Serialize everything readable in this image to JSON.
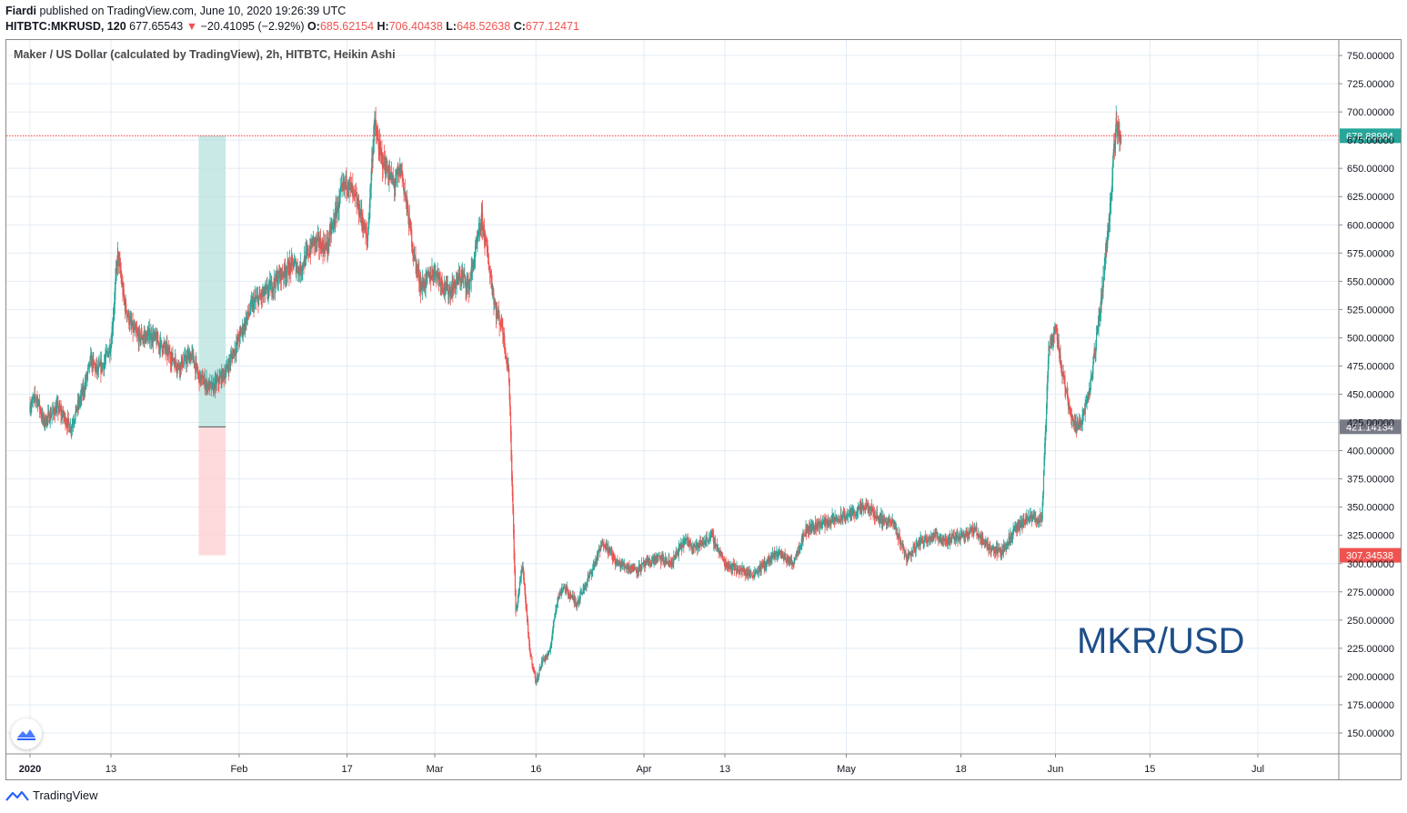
{
  "header": {
    "author": "Fiardi",
    "published": "published on TradingView.com, June 10, 2020 19:26:39 UTC",
    "symbol": "HITBTC:MKRUSD, 120",
    "last": "677.65543",
    "change_arrow": "▼",
    "change": "−20.41095 (−2.92%)",
    "o_label": "O:",
    "o_value": "685.62154",
    "h_label": "H:",
    "h_value": "706.40438",
    "l_label": "L:",
    "l_value": "648.52638",
    "c_label": "C:",
    "c_value": "677.12471"
  },
  "legend_title": "Maker / US Dollar (calculated by TradingView), 2h, HITBTC, Heikin Ashi",
  "watermark": "MKR/USD",
  "footer": {
    "brand": "TradingView",
    "logo_icon": "tradingview-logo-icon"
  },
  "colors": {
    "up": "#26a69a",
    "down": "#ef5350",
    "grid": "#e3ecf5",
    "price_line": "#e53935",
    "current_tag": "#26a69a",
    "sl_tag": "#ef5350",
    "entry_tag": "#787b86",
    "profit_zone": "#b2dfdb",
    "loss_zone": "#ffcdd2",
    "watermark": "#1d4e89"
  },
  "chart_data": {
    "type": "candlestick",
    "style": "Heikin Ashi",
    "timeframe": "2h",
    "exchange": "HITBTC",
    "x_ticks": [
      "2020",
      "13",
      "Feb",
      "17",
      "Mar",
      "16",
      "Apr",
      "13",
      "May",
      "18",
      "Jun",
      "15",
      "Jul"
    ],
    "x_tick_dates": [
      "2020-01-01",
      "2020-01-13",
      "2020-02-01",
      "2020-02-17",
      "2020-03-01",
      "2020-03-16",
      "2020-04-01",
      "2020-04-13",
      "2020-05-01",
      "2020-05-18",
      "2020-06-01",
      "2020-06-15",
      "2020-07-01"
    ],
    "y_ticks": [
      "750.00000",
      "725.00000",
      "700.00000",
      "675.00000",
      "650.00000",
      "625.00000",
      "600.00000",
      "575.00000",
      "550.00000",
      "525.00000",
      "500.00000",
      "475.00000",
      "450.00000",
      "425.00000",
      "400.00000",
      "375.00000",
      "350.00000",
      "325.00000",
      "300.00000",
      "275.00000",
      "250.00000",
      "225.00000",
      "200.00000",
      "175.00000",
      "150.00000"
    ],
    "y_tick_values": [
      750,
      725,
      700,
      675,
      650,
      625,
      600,
      575,
      550,
      525,
      500,
      475,
      450,
      425,
      400,
      375,
      350,
      325,
      300,
      275,
      250,
      225,
      200,
      175,
      150
    ],
    "ylim": [
      141,
      765
    ],
    "grid": true,
    "current_price": {
      "label": "678.88984",
      "value": 678.88984
    },
    "position": {
      "type": "long",
      "start": "2020-01-26",
      "end": "2020-01-30",
      "entry": 421.14134,
      "entry_label": "421.14134",
      "target": 679,
      "stop": 307.34538,
      "stop_label": "307.34538"
    },
    "price_path": [
      [
        "2020-01-01",
        440
      ],
      [
        "2020-01-02",
        448
      ],
      [
        "2020-01-03",
        425
      ],
      [
        "2020-01-05",
        438
      ],
      [
        "2020-01-06",
        430
      ],
      [
        "2020-01-07",
        420
      ],
      [
        "2020-01-08",
        438
      ],
      [
        "2020-01-09",
        455
      ],
      [
        "2020-01-10",
        480
      ],
      [
        "2020-01-11",
        470
      ],
      [
        "2020-01-12",
        478
      ],
      [
        "2020-01-13",
        495
      ],
      [
        "2020-01-14",
        575
      ],
      [
        "2020-01-15",
        530
      ],
      [
        "2020-01-16",
        510
      ],
      [
        "2020-01-17",
        500
      ],
      [
        "2020-01-19",
        502
      ],
      [
        "2020-01-21",
        490
      ],
      [
        "2020-01-23",
        475
      ],
      [
        "2020-01-25",
        485
      ],
      [
        "2020-01-26",
        465
      ],
      [
        "2020-01-28",
        455
      ],
      [
        "2020-01-30",
        470
      ],
      [
        "2020-02-01",
        500
      ],
      [
        "2020-02-03",
        530
      ],
      [
        "2020-02-05",
        540
      ],
      [
        "2020-02-07",
        555
      ],
      [
        "2020-02-09",
        565
      ],
      [
        "2020-02-10",
        560
      ],
      [
        "2020-02-12",
        585
      ],
      [
        "2020-02-14",
        580
      ],
      [
        "2020-02-16",
        625
      ],
      [
        "2020-02-17",
        640
      ],
      [
        "2020-02-18",
        625
      ],
      [
        "2020-02-19",
        610
      ],
      [
        "2020-02-20",
        585
      ],
      [
        "2020-02-21",
        690
      ],
      [
        "2020-02-22",
        660
      ],
      [
        "2020-02-24",
        635
      ],
      [
        "2020-02-25",
        650
      ],
      [
        "2020-02-26",
        610
      ],
      [
        "2020-02-27",
        570
      ],
      [
        "2020-02-28",
        545
      ],
      [
        "2020-03-01",
        560
      ],
      [
        "2020-03-03",
        540
      ],
      [
        "2020-03-05",
        555
      ],
      [
        "2020-03-06",
        545
      ],
      [
        "2020-03-07",
        575
      ],
      [
        "2020-03-08",
        605
      ],
      [
        "2020-03-09",
        565
      ],
      [
        "2020-03-10",
        525
      ],
      [
        "2020-03-11",
        510
      ],
      [
        "2020-03-12",
        465
      ],
      [
        "2020-03-13",
        255
      ],
      [
        "2020-03-14",
        300
      ],
      [
        "2020-03-15",
        225
      ],
      [
        "2020-03-16",
        195
      ],
      [
        "2020-03-17",
        215
      ],
      [
        "2020-03-18",
        220
      ],
      [
        "2020-03-19",
        265
      ],
      [
        "2020-03-20",
        280
      ],
      [
        "2020-03-22",
        265
      ],
      [
        "2020-03-24",
        290
      ],
      [
        "2020-03-26",
        320
      ],
      [
        "2020-03-28",
        300
      ],
      [
        "2020-03-31",
        295
      ],
      [
        "2020-04-03",
        305
      ],
      [
        "2020-04-05",
        300
      ],
      [
        "2020-04-07",
        320
      ],
      [
        "2020-04-09",
        315
      ],
      [
        "2020-04-11",
        325
      ],
      [
        "2020-04-13",
        300
      ],
      [
        "2020-04-15",
        295
      ],
      [
        "2020-04-17",
        290
      ],
      [
        "2020-04-19",
        300
      ],
      [
        "2020-04-21",
        310
      ],
      [
        "2020-04-23",
        300
      ],
      [
        "2020-04-25",
        330
      ],
      [
        "2020-04-27",
        335
      ],
      [
        "2020-04-30",
        340
      ],
      [
        "2020-05-02",
        345
      ],
      [
        "2020-05-04",
        350
      ],
      [
        "2020-05-06",
        340
      ],
      [
        "2020-05-08",
        335
      ],
      [
        "2020-05-10",
        305
      ],
      [
        "2020-05-12",
        320
      ],
      [
        "2020-05-14",
        325
      ],
      [
        "2020-05-16",
        320
      ],
      [
        "2020-05-18",
        325
      ],
      [
        "2020-05-20",
        330
      ],
      [
        "2020-05-22",
        315
      ],
      [
        "2020-05-24",
        310
      ],
      [
        "2020-05-26",
        330
      ],
      [
        "2020-05-28",
        340
      ],
      [
        "2020-05-30",
        340
      ],
      [
        "2020-05-31",
        490
      ],
      [
        "2020-06-01",
        510
      ],
      [
        "2020-06-02",
        470
      ],
      [
        "2020-06-03",
        440
      ],
      [
        "2020-06-04",
        420
      ],
      [
        "2020-06-05",
        430
      ],
      [
        "2020-06-06",
        450
      ],
      [
        "2020-06-07",
        495
      ],
      [
        "2020-06-08",
        545
      ],
      [
        "2020-06-09",
        610
      ],
      [
        "2020-06-10",
        690
      ],
      [
        "2020-06-10T18",
        678
      ]
    ]
  }
}
